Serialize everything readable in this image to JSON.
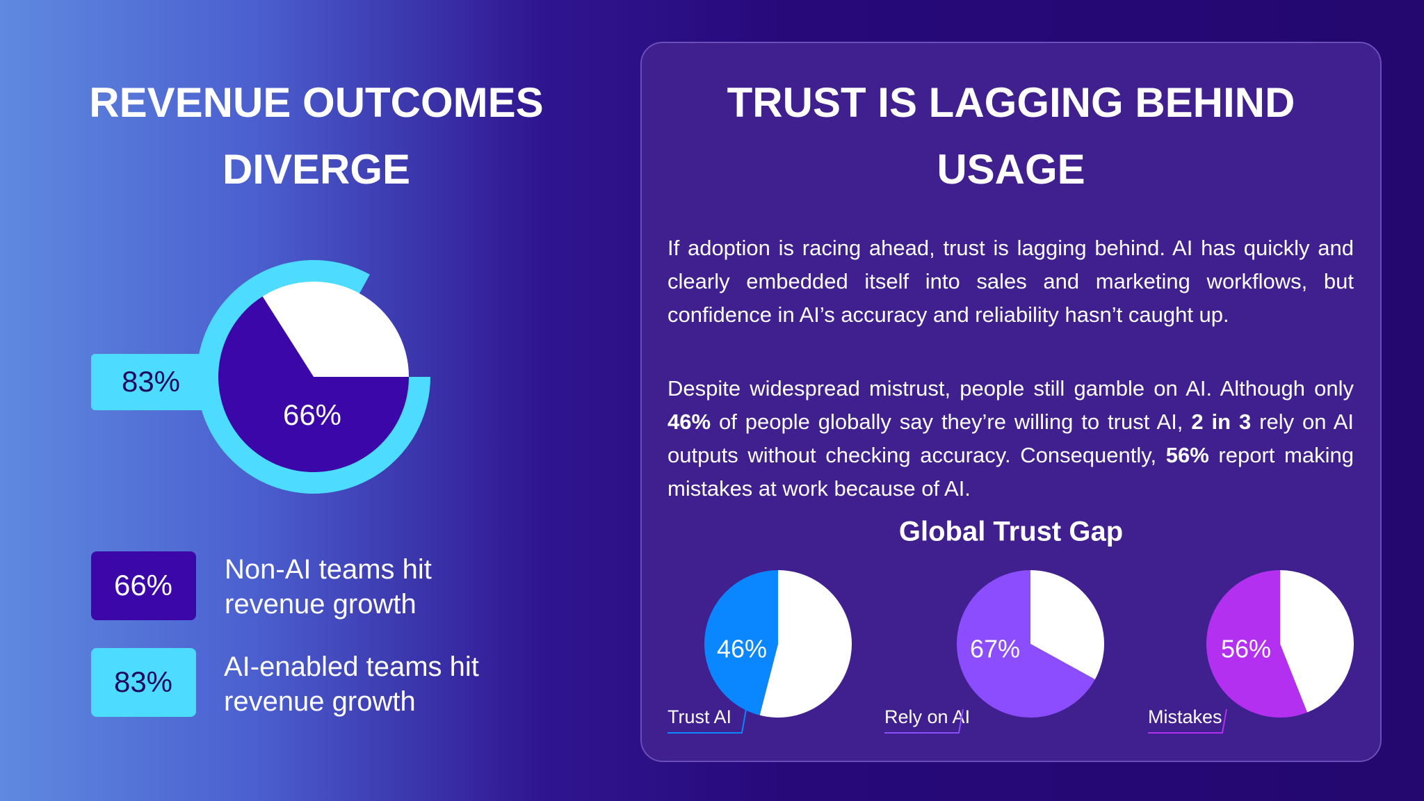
{
  "left": {
    "title": "REVENUE OUTCOMES DIVERGE"
  },
  "right": {
    "title": "TRUST IS LAGGING BEHIND USAGE",
    "paragraphs": [
      [
        "If adoption is racing ahead, trust is lagging behind. AI has quickly and clearly embedded itself into sales and marketing workflows, but confidence in AI’s accuracy and reliability hasn’t caught up."
      ],
      [
        "Despite widespread mistrust, people still gamble on AI. Although only ",
        "46%",
        " of people globally say they’re willing to trust AI, ",
        "2 in 3",
        " rely on AI outputs without checking accuracy. Consequently, ",
        "56%",
        " report making mistakes at work because of AI."
      ]
    ]
  },
  "chart_data": [
    {
      "type": "nested-pie",
      "series": [
        {
          "name": "Non-AI teams hit revenue growth",
          "color": "#3c07a8",
          "values": [
            66
          ],
          "value_labels": [
            "66%"
          ]
        },
        {
          "name": "AI-enabled teams hit revenue growth",
          "color": "#4ddcff",
          "values": [
            83
          ],
          "value_labels": [
            "83%"
          ]
        }
      ]
    },
    {
      "type": "pie-row",
      "title": "Global Trust Gap",
      "series": [
        {
          "name": "Trust AI",
          "color": "#0a86ff",
          "values": [
            46
          ],
          "value_labels": [
            "46%"
          ]
        },
        {
          "name": "Rely on AI",
          "color": "#8c4dff",
          "values": [
            67
          ],
          "value_labels": [
            "67%"
          ]
        },
        {
          "name": "Mistakes",
          "color": "#b330f0",
          "values": [
            56
          ],
          "value_labels": [
            "56%"
          ]
        }
      ]
    }
  ]
}
